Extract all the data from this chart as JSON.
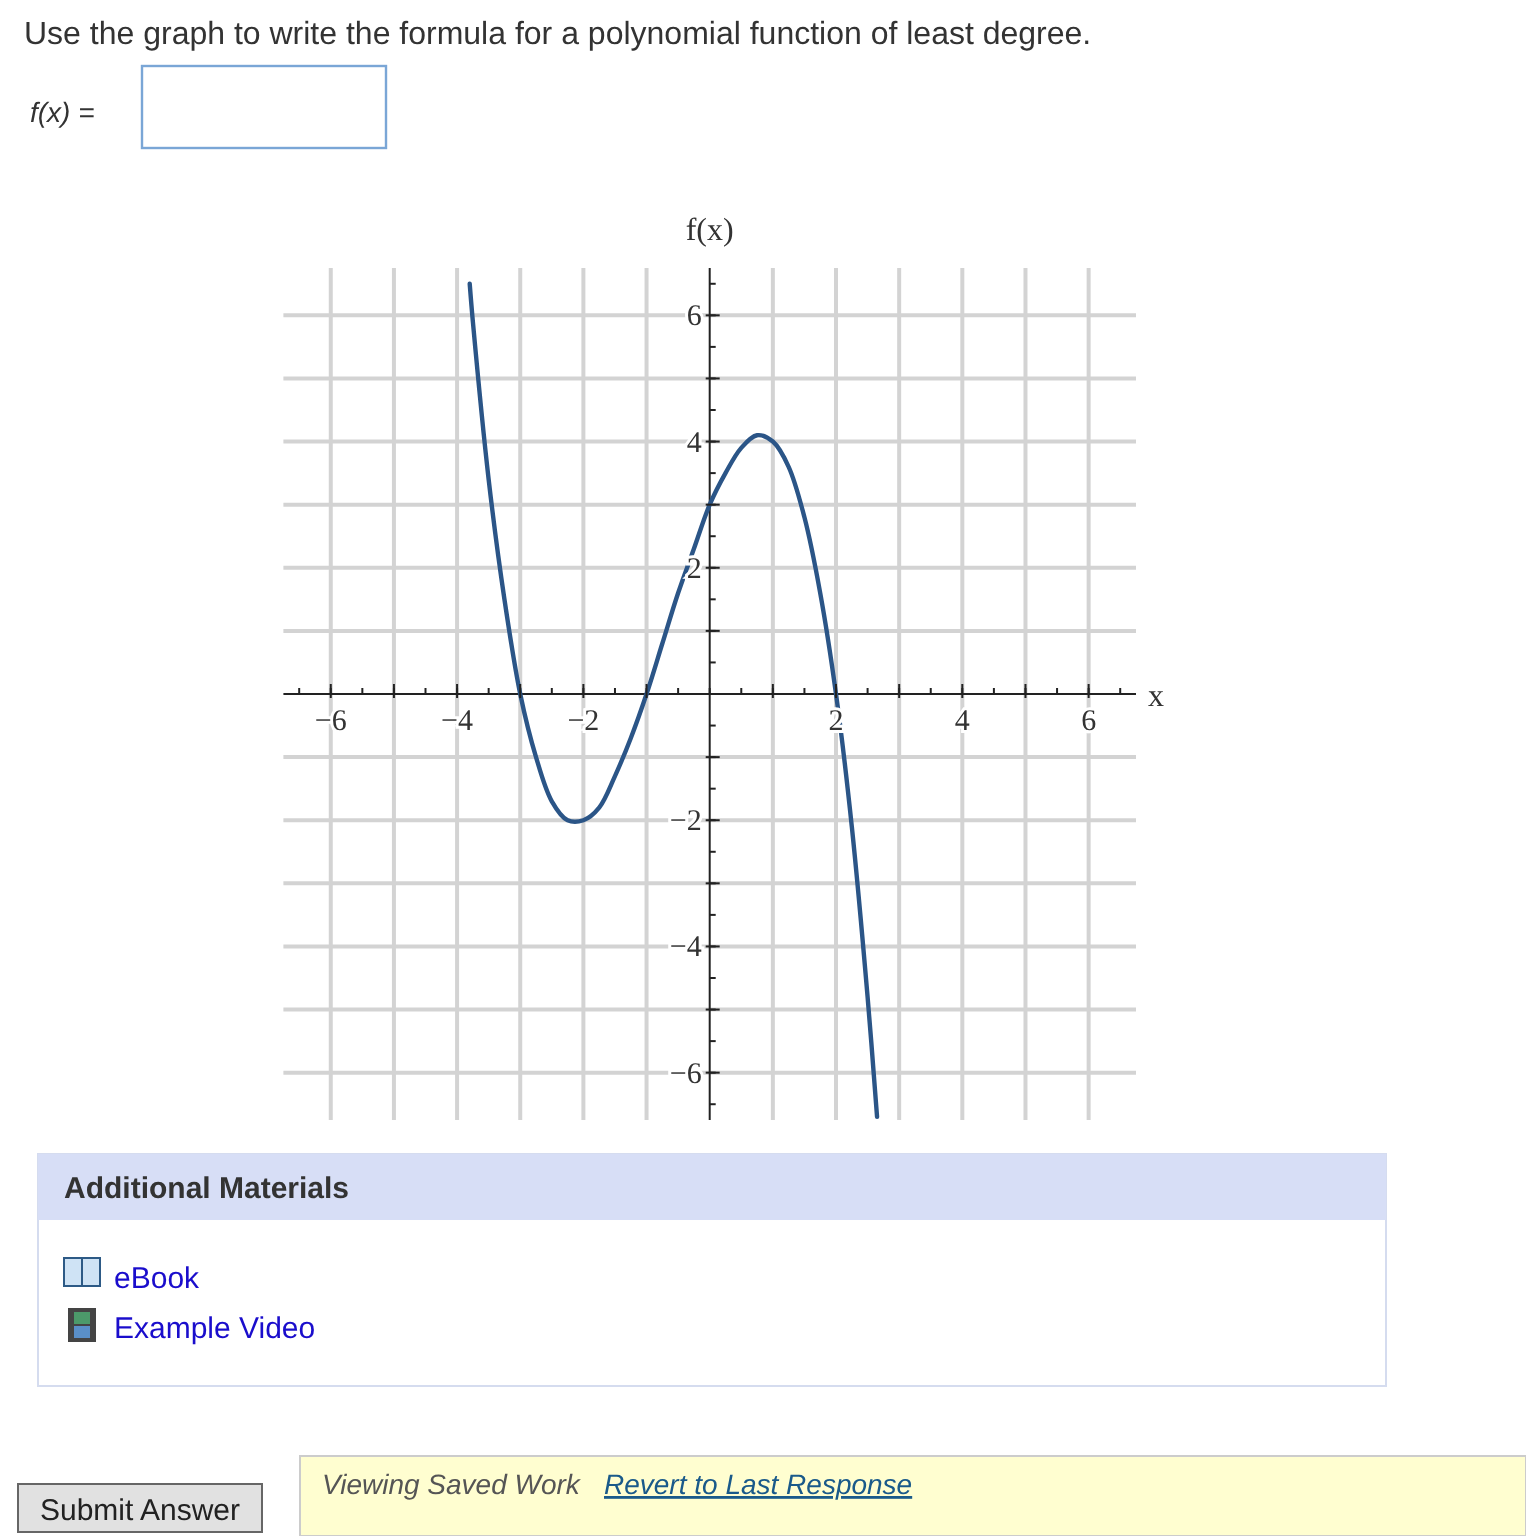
{
  "chart_data": {
    "type": "line",
    "title": "Use the graph to write the formula for a polynomial function of least degree.",
    "xlabel": "x",
    "ylabel": "f(x)",
    "x": [
      -3.8,
      -3.75,
      -3.5,
      -3.25,
      -3,
      -2.75,
      -2.5,
      -2.25,
      -2,
      -1.75,
      -1.5,
      -1.25,
      -1,
      -0.75,
      -0.5,
      -0.25,
      0,
      0.25,
      0.5,
      0.75,
      1,
      1.25,
      1.5,
      1.75,
      2,
      2.25,
      2.5,
      2.65
    ],
    "series": [
      {
        "color": "#2b5587",
        "values": [
          6.5,
          5.9,
          3.4,
          1.5,
          0,
          -1.0,
          -1.7,
          -2.0,
          -2.0,
          -1.8,
          -1.3,
          -0.7,
          0,
          0.8,
          1.6,
          2.3,
          3.0,
          3.5,
          3.9,
          4.1,
          4.0,
          3.6,
          2.8,
          1.6,
          0,
          -2.1,
          -4.8,
          -6.7
        ]
      }
    ],
    "xlim": [
      -6.75,
      6.75
    ],
    "ylim": [
      -6.75,
      6.75
    ],
    "xticks": [
      {
        "value": -6,
        "label": "−6"
      },
      {
        "value": -5,
        "label": null
      },
      {
        "value": -4,
        "label": "−4"
      },
      {
        "value": -3,
        "label": null
      },
      {
        "value": -2,
        "label": "−2"
      },
      {
        "value": -1,
        "label": null
      },
      {
        "value": 1,
        "label": null
      },
      2,
      {
        "value": 3,
        "label": null
      },
      4,
      {
        "value": 5,
        "label": null
      },
      6
    ],
    "yticks": [
      {
        "value": -6,
        "label": "−6"
      },
      {
        "value": -5,
        "label": null
      },
      {
        "value": -4,
        "label": "−4"
      },
      {
        "value": -3,
        "label": null
      },
      {
        "value": -2,
        "label": "−2"
      },
      {
        "value": -1,
        "label": null
      },
      {
        "value": 1,
        "label": null
      },
      2,
      {
        "value": 3,
        "label": null
      },
      4,
      {
        "value": 5,
        "label": null
      },
      6
    ],
    "grid": true,
    "marker": "none",
    "line_style": "solid",
    "annotations": [
      "f(x) =",
      "Additional Materials",
      "eBook",
      "Example Video",
      "Submit Answer",
      "Viewing Saved Work",
      "Revert to Last Response"
    ]
  }
}
